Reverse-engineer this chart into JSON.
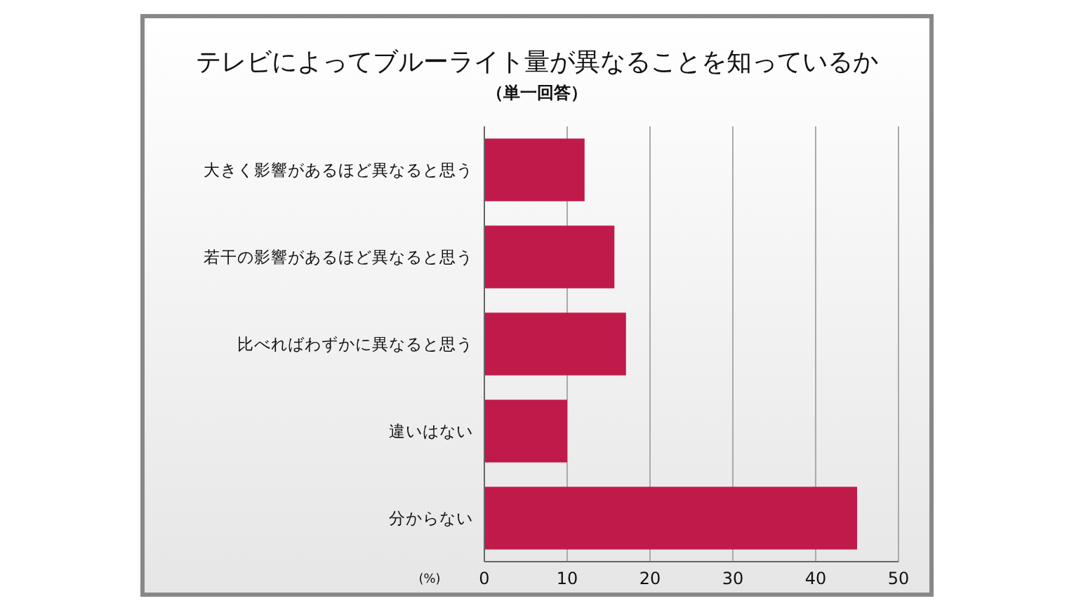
{
  "chart_data": {
    "type": "bar",
    "orientation": "horizontal",
    "title": "テレビによってブルーライト量が異なることを知っているか",
    "subtitle": "（単一回答）",
    "xlabel": "(%)",
    "categories": [
      "大きく影響があるほど異なると思う",
      "若干の影響があるほど異なると思う",
      "比べればわずかに異なると思う",
      "違いはない",
      "分からない"
    ],
    "values": [
      12.1,
      15.7,
      17.1,
      10,
      45
    ],
    "color": "#c01a4a",
    "xlim": [
      0,
      50
    ],
    "xticks": [
      0,
      10,
      20,
      30,
      40,
      50
    ],
    "grid": "x"
  }
}
